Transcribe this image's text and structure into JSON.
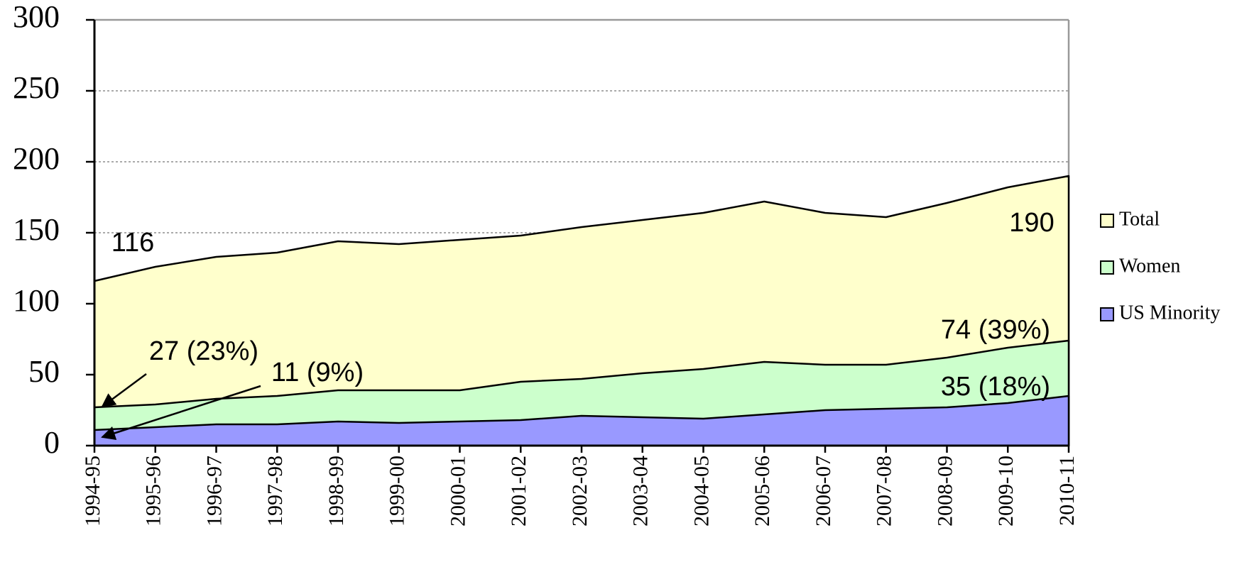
{
  "chart_data": {
    "type": "area",
    "categories": [
      "1994-95",
      "1995-96",
      "1996-97",
      "1997-98",
      "1998-99",
      "1999-00",
      "2000-01",
      "2001-02",
      "2002-03",
      "2003-04",
      "2004-05",
      "2005-06",
      "2006-07",
      "2007-08",
      "2008-09",
      "2009-10",
      "2010-11"
    ],
    "series": [
      {
        "name": "Total",
        "color": "#ffffcc",
        "values": [
          116,
          126,
          133,
          136,
          144,
          142,
          145,
          148,
          154,
          159,
          164,
          172,
          164,
          161,
          171,
          182,
          190
        ],
        "value_labels": [
          "116",
          null,
          null,
          null,
          null,
          null,
          null,
          null,
          null,
          null,
          null,
          null,
          null,
          null,
          null,
          null,
          "190"
        ]
      },
      {
        "name": "Women",
        "color": "#ccffcc",
        "values": [
          27,
          29,
          33,
          35,
          39,
          39,
          39,
          45,
          47,
          51,
          54,
          59,
          57,
          57,
          62,
          69,
          74
        ],
        "value_labels": [
          "27 (23%)",
          null,
          null,
          null,
          null,
          null,
          null,
          null,
          null,
          null,
          null,
          null,
          null,
          null,
          null,
          null,
          "74 (39%)"
        ]
      },
      {
        "name": "US Minority",
        "color": "#9999ff",
        "values": [
          11,
          13,
          15,
          15,
          17,
          16,
          17,
          18,
          21,
          20,
          19,
          22,
          25,
          26,
          27,
          30,
          35
        ],
        "value_labels": [
          "11 (9%)",
          null,
          null,
          null,
          null,
          null,
          null,
          null,
          null,
          null,
          null,
          null,
          null,
          null,
          null,
          null,
          "35 (18%)"
        ]
      }
    ],
    "ylim": [
      0,
      300
    ],
    "yticks": [
      0,
      50,
      100,
      150,
      200,
      250,
      300
    ],
    "grid": true,
    "legend": "right"
  }
}
